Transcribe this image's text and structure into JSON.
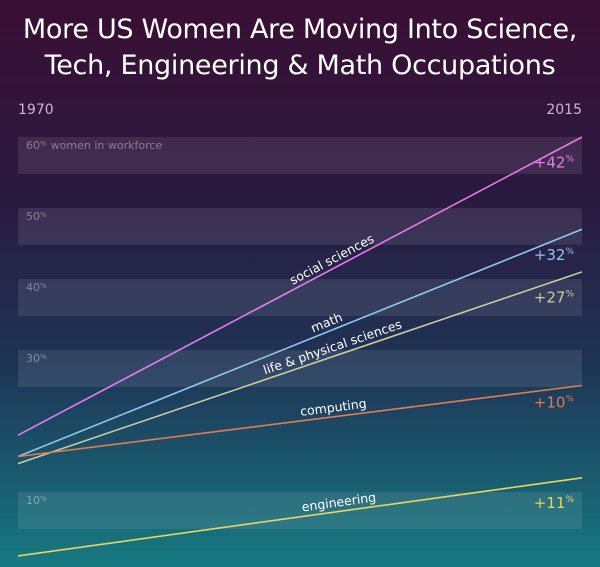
{
  "title_lines": [
    "More US Women Are Moving Into Science,",
    "Tech, Engineering & Math Occupations"
  ],
  "chart_data": {
    "type": "line",
    "title": "More US Women Are Moving Into Science, Tech, Engineering & Math Occupations",
    "x": [
      1970,
      2015
    ],
    "x_labels": [
      "1970",
      "2015"
    ],
    "y_range": [
      0,
      65
    ],
    "y_ticks": [
      {
        "value": 10,
        "num": "10",
        "unit": "%",
        "text": ""
      },
      {
        "value": 30,
        "num": "30",
        "unit": "%",
        "text": ""
      },
      {
        "value": 40,
        "num": "40",
        "unit": "%",
        "text": ""
      },
      {
        "value": 50,
        "num": "50",
        "unit": "%",
        "text": ""
      },
      {
        "value": 60,
        "num": "60",
        "unit": "%",
        "text": "women in workforce"
      }
    ],
    "series": [
      {
        "name": "social sciences",
        "values": [
          18,
          60
        ],
        "change_num": "+42",
        "change_unit": "%",
        "color": "#e67be9"
      },
      {
        "name": "math",
        "values": [
          15,
          47
        ],
        "change_num": "+32",
        "change_unit": "%",
        "color": "#90c7ea"
      },
      {
        "name": "life & physical sciences",
        "values": [
          14,
          41
        ],
        "change_num": "+27",
        "change_unit": "%",
        "color": "#c9cc9f"
      },
      {
        "name": "computing",
        "values": [
          15,
          25
        ],
        "change_num": "+10",
        "change_unit": "%",
        "color": "#e57a4f"
      },
      {
        "name": "engineering",
        "values": [
          1,
          12
        ],
        "change_num": "+11",
        "change_unit": "%",
        "color": "#e7d75a"
      }
    ]
  }
}
